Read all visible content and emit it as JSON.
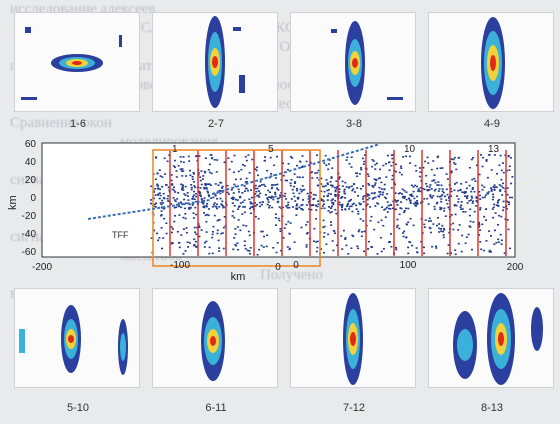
{
  "background_text": [
    "исследование алексеев",
    "ИССЛЕДОВАНИЕ АЛЕКСЕЕВ",
    "БИОФИЛЬНЫХ",
    "полученных результатов",
    "проведено корреляционное",
    "в нескольких окнах",
    "Сравнение окон",
    "моделирования",
    "соотношение",
    "сигнала",
    "Проведено сопоставление полученных ре",
    "Стенинга в Р окнах",
    "сигнал концентрации",
    "масштаба",
    "Получено",
    "выводы"
  ],
  "top_panels": [
    {
      "caption": "1-6",
      "variant": "small"
    },
    {
      "caption": "2-7",
      "variant": "tall"
    },
    {
      "caption": "3-8",
      "variant": "medium"
    },
    {
      "caption": "4-9",
      "variant": "tall"
    }
  ],
  "bottom_panels": [
    {
      "caption": "5-10",
      "variant": "offset"
    },
    {
      "caption": "6-11",
      "variant": "medium"
    },
    {
      "caption": "7-12",
      "variant": "tall"
    },
    {
      "caption": "8-13",
      "variant": "double"
    }
  ],
  "main_plot": {
    "y_label": "km",
    "x_label": "km",
    "y_ticks": [
      "60",
      "40",
      "20",
      "0",
      "-20",
      "-40",
      "-60"
    ],
    "x_ticks_bottom": [
      "-200",
      "0",
      "200"
    ],
    "x_ticks_inner": [
      "-100",
      "0",
      "100"
    ],
    "window_labels": [
      "1",
      "5",
      "10",
      "13"
    ],
    "annotation": "TFF",
    "colors": {
      "dots": "#1f3b8f",
      "window_lines": "#e0271d",
      "inner_frame": "#f08a2a",
      "track": "#3a6fb5"
    }
  }
}
